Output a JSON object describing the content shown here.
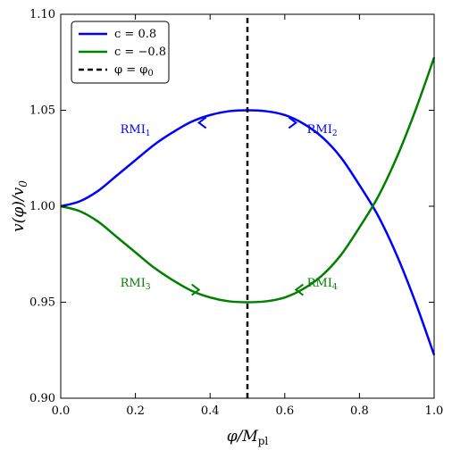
{
  "chart_data": {
    "type": "line",
    "xlabel": "φ/M_pl",
    "xlabel_main": "φ/M",
    "xlabel_sub": "pl",
    "ylabel": "v(φ)/v_0",
    "ylabel_main": "v(φ)/v",
    "ylabel_sub": "0",
    "xlim": [
      0.0,
      1.0
    ],
    "ylim": [
      0.9,
      1.1
    ],
    "xticks": [
      0.0,
      0.2,
      0.4,
      0.6,
      0.8,
      1.0
    ],
    "xtick_labels": [
      "0.0",
      "0.2",
      "0.4",
      "0.6",
      "0.8",
      "1.0"
    ],
    "yticks": [
      0.9,
      0.95,
      1.0,
      1.05,
      1.1
    ],
    "ytick_labels": [
      "0.90",
      "0.95",
      "1.00",
      "1.05",
      "1.10"
    ],
    "grid": false,
    "legend_position": "top-left",
    "series": [
      {
        "name": "c = 0.8",
        "color": "#0000ff",
        "x": [
          0.0,
          0.05,
          0.1,
          0.15,
          0.2,
          0.25,
          0.3,
          0.35,
          0.4,
          0.45,
          0.5,
          0.55,
          0.6,
          0.65,
          0.7,
          0.75,
          0.8,
          0.85,
          0.9,
          0.95,
          1.0
        ],
        "y": [
          1.0,
          1.0025,
          1.008,
          1.016,
          1.024,
          1.032,
          1.0385,
          1.044,
          1.0475,
          1.0495,
          1.05,
          1.0495,
          1.0475,
          1.043,
          1.036,
          1.0255,
          1.011,
          0.995,
          0.9745,
          0.95,
          0.9225
        ]
      },
      {
        "name": "c = −0.8",
        "color": "#008000",
        "x": [
          0.0,
          0.05,
          0.1,
          0.15,
          0.2,
          0.25,
          0.3,
          0.35,
          0.4,
          0.45,
          0.5,
          0.55,
          0.6,
          0.65,
          0.7,
          0.75,
          0.8,
          0.85,
          0.9,
          0.95,
          1.0
        ],
        "y": [
          1.0,
          0.9975,
          0.992,
          0.984,
          0.976,
          0.968,
          0.9615,
          0.956,
          0.9525,
          0.9505,
          0.95,
          0.9505,
          0.9525,
          0.957,
          0.964,
          0.9745,
          0.989,
          1.005,
          1.0255,
          1.05,
          1.0775
        ]
      },
      {
        "name": "φ = φ_0",
        "name_main": "φ = φ",
        "name_sub": "0",
        "color": "#000000",
        "dashed": true,
        "x": [
          0.5,
          0.5
        ],
        "y": [
          0.9,
          1.1
        ]
      }
    ],
    "annotations": [
      {
        "main": "RMI",
        "sub": "1",
        "x": 0.2,
        "y": 1.04,
        "color": "#0000ff"
      },
      {
        "main": "RMI",
        "sub": "2",
        "x": 0.7,
        "y": 1.04,
        "color": "#0000ff"
      },
      {
        "main": "RMI",
        "sub": "3",
        "x": 0.2,
        "y": 0.96,
        "color": "#008000"
      },
      {
        "main": "RMI",
        "sub": "4",
        "x": 0.7,
        "y": 0.96,
        "color": "#008000"
      }
    ],
    "arrows": [
      {
        "x": 0.37,
        "y": 1.0435,
        "direction": "left",
        "color": "#0000ff"
      },
      {
        "x": 0.63,
        "y": 1.0435,
        "direction": "right",
        "color": "#0000ff"
      },
      {
        "x": 0.37,
        "y": 0.9565,
        "direction": "right",
        "color": "#008000"
      },
      {
        "x": 0.63,
        "y": 0.9565,
        "direction": "left",
        "color": "#008000"
      }
    ]
  }
}
